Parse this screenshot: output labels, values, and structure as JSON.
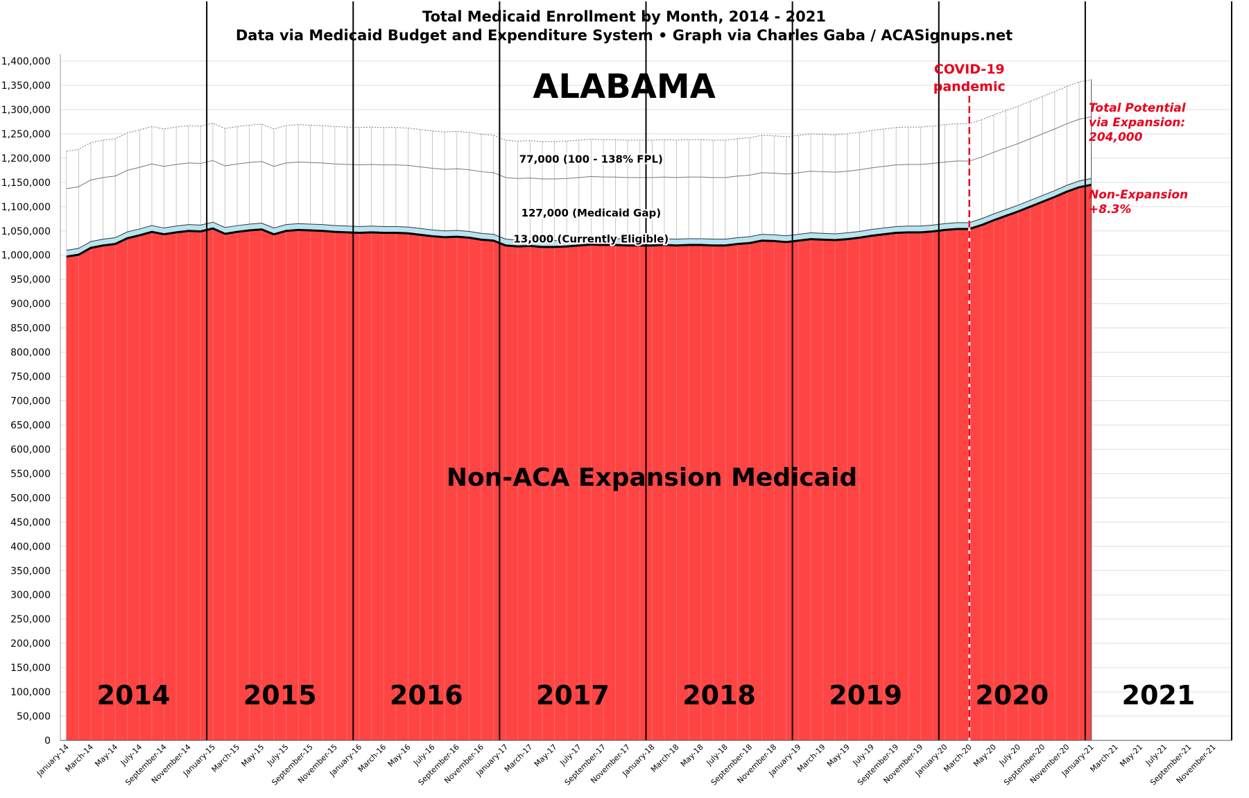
{
  "chart_data": {
    "type": "area",
    "title": "Total Medicaid Enrollment by Month, 2014 - 2021",
    "subtitle": "Data via Medicaid Budget and Expenditure System  •  Graph via Charles Gaba / ACASignups.net",
    "state_label": "ALABAMA",
    "area_label": "Non-ACA Expansion Medicaid",
    "ylim": [
      0,
      1400000
    ],
    "y_ticks": [
      "0",
      "50,000",
      "100,000",
      "150,000",
      "200,000",
      "250,000",
      "300,000",
      "350,000",
      "400,000",
      "450,000",
      "500,000",
      "550,000",
      "600,000",
      "650,000",
      "700,000",
      "750,000",
      "800,000",
      "850,000",
      "900,000",
      "950,000",
      "1,000,000",
      "1,050,000",
      "1,100,000",
      "1,150,000",
      "1,200,000",
      "1,250,000",
      "1,300,000",
      "1,350,000",
      "1,400,000"
    ],
    "x_tick_labels": [
      "January-14",
      "March-14",
      "May-14",
      "July-14",
      "September-14",
      "November-14",
      "January-15",
      "March-15",
      "May-15",
      "July-15",
      "September-15",
      "November-15",
      "January-16",
      "March-16",
      "May-16",
      "July-16",
      "September-16",
      "November-16",
      "January-17",
      "March-17",
      "May-17",
      "July-17",
      "September-17",
      "November-17",
      "January-18",
      "March-18",
      "May-18",
      "July-18",
      "September-18",
      "November-18",
      "January-19",
      "March-19",
      "May-19",
      "July-19",
      "September-19",
      "November-19",
      "January-20",
      "March-20",
      "May-20",
      "July-20",
      "September-20",
      "November-20",
      "January-21",
      "March-21",
      "May-21",
      "July-21",
      "September-21",
      "November-21"
    ],
    "year_labels": [
      "2014",
      "2015",
      "2016",
      "2017",
      "2018",
      "2019",
      "2020",
      "2021"
    ],
    "series": [
      {
        "name": "Non-ACA Expansion Medicaid",
        "color": "#ff4444",
        "values": [
          997000,
          1001000,
          1015000,
          1020000,
          1023000,
          1035000,
          1041000,
          1048000,
          1043000,
          1047000,
          1050000,
          1049000,
          1055000,
          1044000,
          1048000,
          1051000,
          1053000,
          1043000,
          1050000,
          1052000,
          1051000,
          1050000,
          1048000,
          1047000,
          1046000,
          1047000,
          1046000,
          1046000,
          1045000,
          1042000,
          1039000,
          1037000,
          1038000,
          1036000,
          1032000,
          1030000,
          1020000,
          1018000,
          1019000,
          1017000,
          1017000,
          1018000,
          1020000,
          1022000,
          1021000,
          1021000,
          1020000,
          1020000,
          1020000,
          1021000,
          1020000,
          1021000,
          1021000,
          1020000,
          1020000,
          1023000,
          1025000,
          1030000,
          1029000,
          1027000,
          1030000,
          1033000,
          1032000,
          1031000,
          1033000,
          1036000,
          1040000,
          1043000,
          1046000,
          1047000,
          1047000,
          1049000,
          1052000,
          1054000,
          1054000,
          1062000,
          1072000,
          1081000,
          1090000,
          1100000,
          1110000,
          1120000,
          1131000,
          1140000,
          1145000
        ]
      },
      {
        "name": "13,000 (Currently Eligible)",
        "color": "#b7e4f0",
        "values": [
          13000,
          13000,
          13000,
          13000,
          13000,
          13000,
          13000,
          13000,
          13000,
          13000,
          13000,
          13000,
          13000,
          13000,
          13000,
          13000,
          13000,
          13000,
          13000,
          13000,
          13000,
          13000,
          13000,
          13000,
          13000,
          13000,
          13000,
          13000,
          13000,
          13000,
          13000,
          13000,
          13000,
          13000,
          13000,
          13000,
          13000,
          13000,
          13000,
          13000,
          13000,
          13000,
          13000,
          13000,
          13000,
          13000,
          13000,
          13000,
          13000,
          13000,
          13000,
          13000,
          13000,
          13000,
          13000,
          13000,
          13000,
          13000,
          13000,
          13000,
          13000,
          13000,
          13000,
          13000,
          13000,
          13000,
          13000,
          13000,
          13000,
          13000,
          13000,
          13000,
          13000,
          13000,
          13000,
          13000,
          13000,
          13000,
          13000,
          13000,
          13000,
          13000,
          13000,
          13000,
          13000
        ]
      },
      {
        "name": "127,000 (Medicaid Gap)",
        "color": "#ffffff",
        "values": [
          127000,
          127000,
          127000,
          127000,
          127000,
          127000,
          127000,
          127000,
          127000,
          127000,
          127000,
          127000,
          127000,
          127000,
          127000,
          127000,
          127000,
          127000,
          127000,
          127000,
          127000,
          127000,
          127000,
          127000,
          127000,
          127000,
          127000,
          127000,
          127000,
          127000,
          127000,
          127000,
          127000,
          127000,
          127000,
          127000,
          127000,
          127000,
          127000,
          127000,
          127000,
          127000,
          127000,
          127000,
          127000,
          127000,
          127000,
          127000,
          127000,
          127000,
          127000,
          127000,
          127000,
          127000,
          127000,
          127000,
          127000,
          127000,
          127000,
          127000,
          127000,
          127000,
          127000,
          127000,
          127000,
          127000,
          127000,
          127000,
          127000,
          127000,
          127000,
          127000,
          127000,
          127000,
          127000,
          127000,
          127000,
          127000,
          127000,
          127000,
          127000,
          127000,
          127000,
          127000,
          127000
        ]
      },
      {
        "name": "77,000 (100 - 138% FPL)",
        "color": "#ffffff",
        "values": [
          77000,
          77000,
          77000,
          77000,
          77000,
          77000,
          77000,
          77000,
          77000,
          77000,
          77000,
          77000,
          77000,
          77000,
          77000,
          77000,
          77000,
          77000,
          77000,
          77000,
          77000,
          77000,
          77000,
          77000,
          77000,
          77000,
          77000,
          77000,
          77000,
          77000,
          77000,
          77000,
          77000,
          77000,
          77000,
          77000,
          77000,
          77000,
          77000,
          77000,
          77000,
          77000,
          77000,
          77000,
          77000,
          77000,
          77000,
          77000,
          77000,
          77000,
          77000,
          77000,
          77000,
          77000,
          77000,
          77000,
          77000,
          77000,
          77000,
          77000,
          77000,
          77000,
          77000,
          77000,
          77000,
          77000,
          77000,
          77000,
          77000,
          77000,
          77000,
          77000,
          77000,
          77000,
          77000,
          77000,
          77000,
          77000,
          77000,
          77000,
          77000,
          77000,
          77000,
          77000,
          77000
        ]
      }
    ],
    "annotations": {
      "covid": [
        "COVID-19",
        "pandemic"
      ],
      "total_potential": [
        "Total Potential",
        "via Expansion:",
        "204,000"
      ],
      "non_expansion": [
        "Non-Expansion",
        "+8.3%"
      ]
    },
    "grid": true,
    "legend": "none"
  }
}
